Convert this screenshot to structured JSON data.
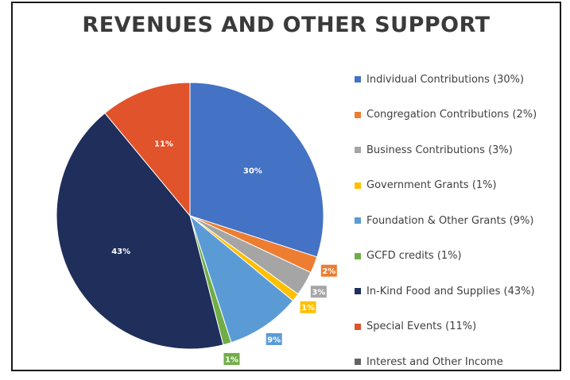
{
  "chart_data": {
    "type": "pie",
    "title": "REVENUES AND OTHER SUPPORT",
    "slices": [
      {
        "name": "Individual Contributions (30%)",
        "value": 30,
        "label": "30%",
        "color": "#4472C4"
      },
      {
        "name": "Congregation Contributions (2%)",
        "value": 2,
        "label": "2%",
        "color": "#ED7D31"
      },
      {
        "name": "Business Contributions (3%)",
        "value": 3,
        "label": "3%",
        "color": "#A5A5A5"
      },
      {
        "name": "Government Grants (1%)",
        "value": 1,
        "label": "1%",
        "color": "#FFC000"
      },
      {
        "name": "Foundation & Other Grants (9%)",
        "value": 9,
        "label": "9%",
        "color": "#5B9BD5"
      },
      {
        "name": "GCFD credits (1%)",
        "value": 1,
        "label": "1%",
        "color": "#70AD47"
      },
      {
        "name": "In-Kind Food and Supplies (43%)",
        "value": 43,
        "label": "43%",
        "color": "#1F2E5A"
      },
      {
        "name": "Special Events (11%)",
        "value": 11,
        "label": "11%",
        "color": "#E0532B"
      },
      {
        "name": "Interest and Other Income",
        "value": 0,
        "label": "",
        "color": "#636363"
      }
    ],
    "legend_position": "right"
  }
}
